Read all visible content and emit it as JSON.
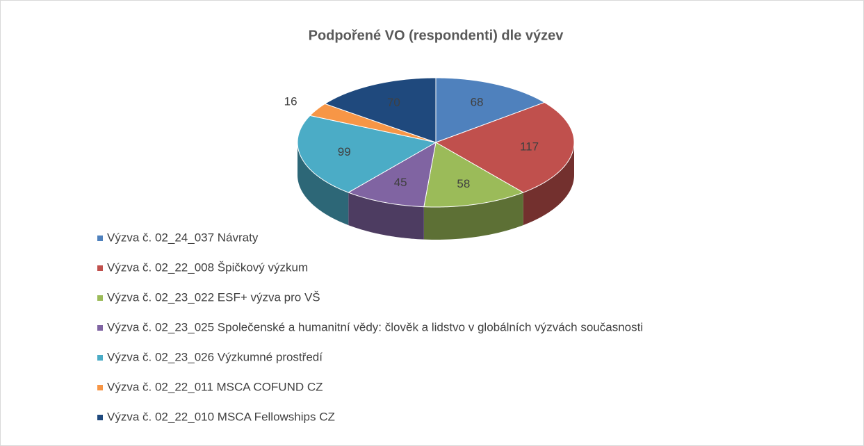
{
  "chart_data": {
    "type": "pie",
    "title": "Podpořené VO (respondenti) dle výzev",
    "categories": [
      "Výzva č. 02_24_037 Návraty",
      "Výzva č. 02_22_008 Špičkový výzkum",
      "Výzva č. 02_23_022 ESF+ výzva pro VŠ",
      "Výzva č. 02_23_025 Společenské a humanitní vědy: člověk a lidstvo v globálních výzvách současnosti",
      "Výzva č. 02_23_026 Výzkumné prostředí",
      "Výzva č. 02_22_011 MSCA COFUND CZ",
      "Výzva č. 02_22_010 MSCA Fellowships CZ"
    ],
    "values": [
      68,
      117,
      58,
      45,
      99,
      16,
      70
    ],
    "colors": [
      "#4f81bd",
      "#c0504d",
      "#9bbb59",
      "#8064a2",
      "#4bacc6",
      "#f79646",
      "#1f497d"
    ],
    "legend": "bottom-left"
  }
}
